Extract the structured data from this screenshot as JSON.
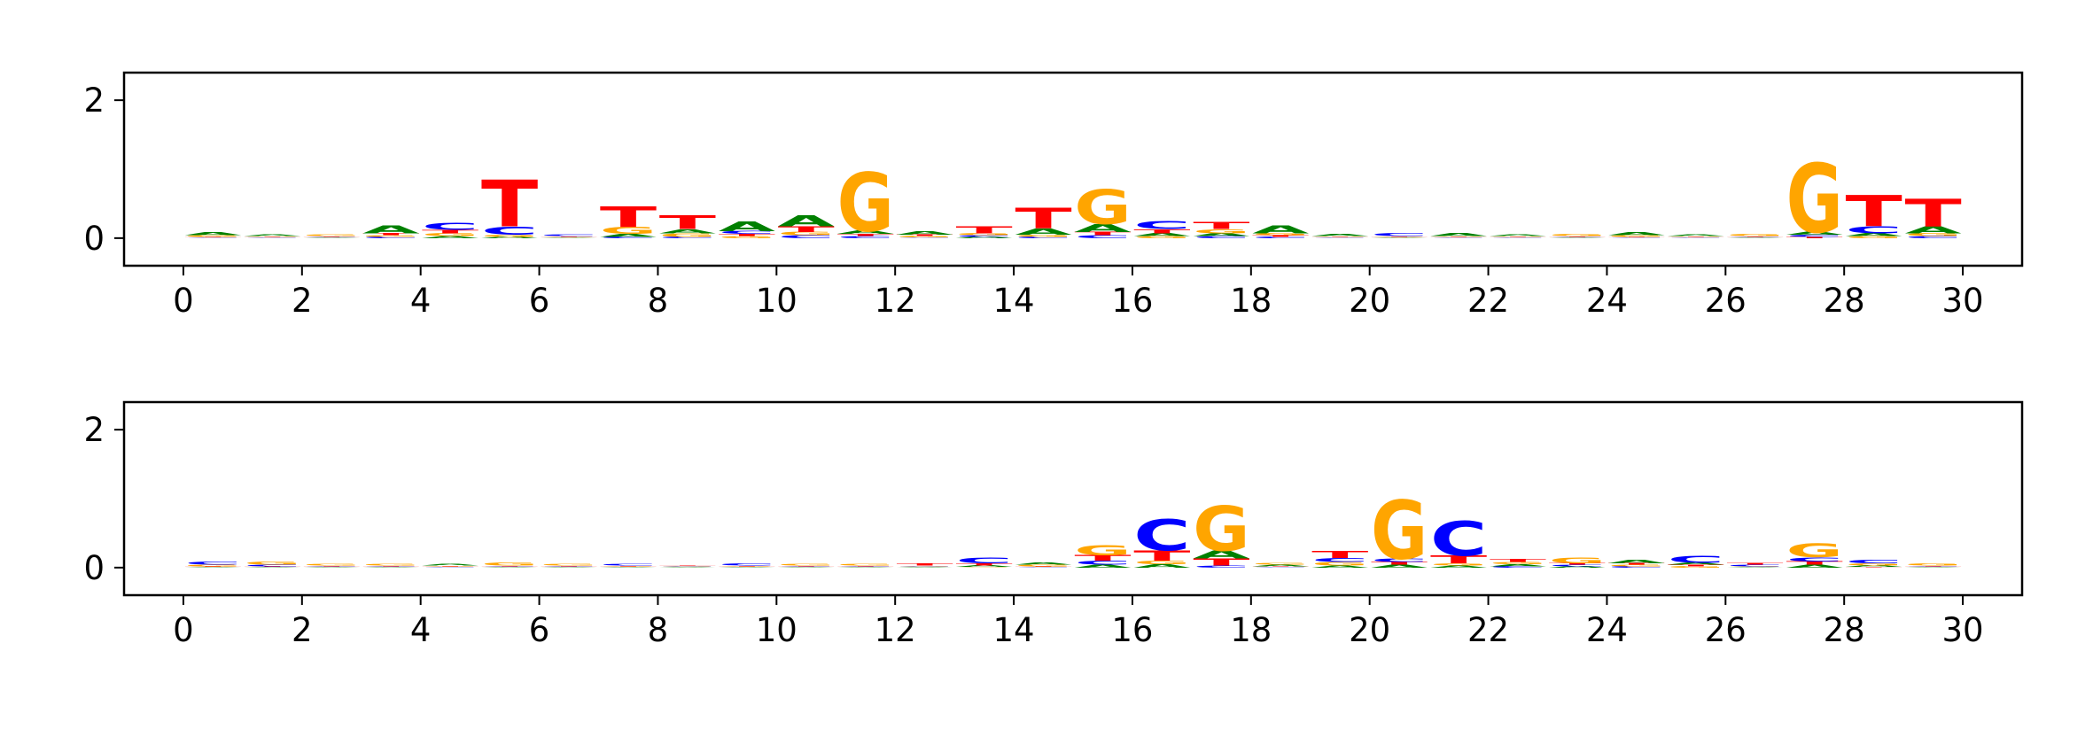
{
  "colors": {
    "A": "#008000",
    "C": "#0000ff",
    "G": "#ffa500",
    "T": "#ff0000",
    "axis": "#000000"
  },
  "chart_data": [
    {
      "type": "sequence-logo",
      "title": "",
      "xlabel": "",
      "ylabel": "",
      "xlim": [
        -1,
        31
      ],
      "ylim": [
        -0.4,
        2.4
      ],
      "xticks": [
        "0",
        "2",
        "4",
        "6",
        "8",
        "10",
        "12",
        "14",
        "16",
        "18",
        "20",
        "22",
        "24",
        "26",
        "28",
        "30"
      ],
      "yticks": [
        "0",
        "2"
      ],
      "positions": [
        {
          "x": 0,
          "letters": {
            "A": 0.04,
            "C": 0.01,
            "G": 0.02,
            "T": 0.01
          }
        },
        {
          "x": 1,
          "letters": {
            "A": 0.02,
            "C": 0.01,
            "G": 0.01,
            "T": 0.01
          }
        },
        {
          "x": 2,
          "letters": {
            "A": 0.01,
            "C": 0.01,
            "G": 0.02,
            "T": 0.01
          }
        },
        {
          "x": 3,
          "letters": {
            "A": 0.12,
            "C": 0.02,
            "G": 0.02,
            "T": 0.03
          }
        },
        {
          "x": 4,
          "letters": {
            "A": 0.03,
            "C": 0.1,
            "G": 0.04,
            "T": 0.05
          }
        },
        {
          "x": 5,
          "letters": {
            "A": 0.02,
            "C": 0.12,
            "G": 0.03,
            "T": 0.68
          }
        },
        {
          "x": 6,
          "letters": {
            "A": 0.01,
            "C": 0.02,
            "G": 0.01,
            "T": 0.01
          }
        },
        {
          "x": 7,
          "letters": {
            "A": 0.04,
            "C": 0.02,
            "G": 0.1,
            "T": 0.3
          }
        },
        {
          "x": 8,
          "letters": {
            "A": 0.06,
            "C": 0.02,
            "G": 0.05,
            "T": 0.2
          }
        },
        {
          "x": 9,
          "letters": {
            "A": 0.14,
            "C": 0.04,
            "G": 0.03,
            "T": 0.03
          }
        },
        {
          "x": 10,
          "letters": {
            "A": 0.16,
            "C": 0.04,
            "G": 0.05,
            "T": 0.08
          }
        },
        {
          "x": 11,
          "letters": {
            "A": 0.05,
            "C": 0.03,
            "G": 0.85,
            "T": 0.03
          }
        },
        {
          "x": 12,
          "letters": {
            "A": 0.05,
            "C": 0.01,
            "G": 0.02,
            "T": 0.02
          }
        },
        {
          "x": 13,
          "letters": {
            "A": 0.02,
            "C": 0.02,
            "G": 0.03,
            "T": 0.1
          }
        },
        {
          "x": 14,
          "letters": {
            "A": 0.09,
            "C": 0.02,
            "G": 0.03,
            "T": 0.3
          }
        },
        {
          "x": 15,
          "letters": {
            "A": 0.12,
            "C": 0.04,
            "G": 0.5,
            "T": 0.05
          }
        },
        {
          "x": 16,
          "letters": {
            "A": 0.04,
            "C": 0.12,
            "G": 0.03,
            "T": 0.06
          }
        },
        {
          "x": 17,
          "letters": {
            "A": 0.04,
            "C": 0.03,
            "G": 0.06,
            "T": 0.1
          }
        },
        {
          "x": 18,
          "letters": {
            "A": 0.12,
            "C": 0.02,
            "G": 0.03,
            "T": 0.02
          }
        },
        {
          "x": 19,
          "letters": {
            "A": 0.03,
            "C": 0.01,
            "G": 0.01,
            "T": 0.01
          }
        },
        {
          "x": 20,
          "letters": {
            "A": 0.01,
            "C": 0.04,
            "G": 0.01,
            "T": 0.01
          }
        },
        {
          "x": 21,
          "letters": {
            "A": 0.04,
            "C": 0.01,
            "G": 0.01,
            "T": 0.01
          }
        },
        {
          "x": 22,
          "letters": {
            "A": 0.02,
            "C": 0.01,
            "G": 0.01,
            "T": 0.01
          }
        },
        {
          "x": 23,
          "letters": {
            "A": 0.01,
            "C": 0.01,
            "G": 0.03,
            "T": 0.01
          }
        },
        {
          "x": 24,
          "letters": {
            "A": 0.04,
            "C": 0.01,
            "G": 0.02,
            "T": 0.01
          }
        },
        {
          "x": 25,
          "letters": {
            "A": 0.02,
            "C": 0.01,
            "G": 0.01,
            "T": 0.01
          }
        },
        {
          "x": 26,
          "letters": {
            "A": 0.01,
            "C": 0.01,
            "G": 0.03,
            "T": 0.01
          }
        },
        {
          "x": 27,
          "letters": {
            "A": 0.04,
            "C": 0.03,
            "G": 1.0,
            "T": 0.02
          }
        },
        {
          "x": 28,
          "letters": {
            "A": 0.04,
            "C": 0.1,
            "G": 0.03,
            "T": 0.45
          }
        },
        {
          "x": 29,
          "letters": {
            "A": 0.1,
            "C": 0.03,
            "G": 0.04,
            "T": 0.4
          }
        }
      ]
    },
    {
      "type": "sequence-logo",
      "title": "",
      "xlabel": "",
      "ylabel": "",
      "xlim": [
        -1,
        31
      ],
      "ylim": [
        -0.4,
        2.4
      ],
      "xticks": [
        "0",
        "2",
        "4",
        "6",
        "8",
        "10",
        "12",
        "14",
        "16",
        "18",
        "20",
        "22",
        "24",
        "26",
        "28",
        "30"
      ],
      "yticks": [
        "0",
        "2"
      ],
      "positions": [
        {
          "x": 0,
          "letters": {
            "A": 0.01,
            "C": 0.04,
            "G": 0.02,
            "T": 0.01
          }
        },
        {
          "x": 1,
          "letters": {
            "A": 0.01,
            "C": 0.02,
            "G": 0.04,
            "T": 0.01
          }
        },
        {
          "x": 2,
          "letters": {
            "A": 0.01,
            "C": 0.01,
            "G": 0.02,
            "T": 0.01
          }
        },
        {
          "x": 3,
          "letters": {
            "A": 0.01,
            "C": 0.01,
            "G": 0.02,
            "T": 0.01
          }
        },
        {
          "x": 4,
          "letters": {
            "A": 0.02,
            "C": 0.01,
            "G": 0.01,
            "T": 0.01
          }
        },
        {
          "x": 5,
          "letters": {
            "A": 0.01,
            "C": 0.01,
            "G": 0.04,
            "T": 0.01
          }
        },
        {
          "x": 6,
          "letters": {
            "A": 0.01,
            "C": 0.01,
            "G": 0.02,
            "T": 0.01
          }
        },
        {
          "x": 7,
          "letters": {
            "A": 0.01,
            "C": 0.02,
            "G": 0.01,
            "T": 0.01
          }
        },
        {
          "x": 8,
          "letters": {
            "A": 0.01,
            "C": 0.01,
            "G": 0.01,
            "T": 0.01
          }
        },
        {
          "x": 9,
          "letters": {
            "A": 0.01,
            "C": 0.03,
            "G": 0.01,
            "T": 0.01
          }
        },
        {
          "x": 10,
          "letters": {
            "A": 0.01,
            "C": 0.01,
            "G": 0.02,
            "T": 0.01
          }
        },
        {
          "x": 11,
          "letters": {
            "A": 0.01,
            "C": 0.01,
            "G": 0.02,
            "T": 0.01
          }
        },
        {
          "x": 12,
          "letters": {
            "A": 0.01,
            "C": 0.01,
            "G": 0.01,
            "T": 0.03
          }
        },
        {
          "x": 13,
          "letters": {
            "A": 0.02,
            "C": 0.08,
            "G": 0.01,
            "T": 0.03
          }
        },
        {
          "x": 14,
          "letters": {
            "A": 0.03,
            "C": 0.01,
            "G": 0.02,
            "T": 0.01
          }
        },
        {
          "x": 15,
          "letters": {
            "A": 0.04,
            "C": 0.06,
            "G": 0.15,
            "T": 0.08
          }
        },
        {
          "x": 16,
          "letters": {
            "A": 0.05,
            "C": 0.45,
            "G": 0.05,
            "T": 0.15
          }
        },
        {
          "x": 17,
          "letters": {
            "A": 0.12,
            "C": 0.03,
            "G": 0.65,
            "T": 0.1
          }
        },
        {
          "x": 18,
          "letters": {
            "A": 0.02,
            "C": 0.01,
            "G": 0.02,
            "T": 0.01
          }
        },
        {
          "x": 19,
          "letters": {
            "A": 0.03,
            "C": 0.06,
            "G": 0.05,
            "T": 0.1
          }
        },
        {
          "x": 20,
          "letters": {
            "A": 0.04,
            "C": 0.05,
            "G": 0.85,
            "T": 0.04
          }
        },
        {
          "x": 21,
          "letters": {
            "A": 0.03,
            "C": 0.5,
            "G": 0.03,
            "T": 0.12
          }
        },
        {
          "x": 22,
          "letters": {
            "A": 0.03,
            "C": 0.02,
            "G": 0.03,
            "T": 0.04
          }
        },
        {
          "x": 23,
          "letters": {
            "A": 0.02,
            "C": 0.02,
            "G": 0.08,
            "T": 0.02
          }
        },
        {
          "x": 24,
          "letters": {
            "A": 0.05,
            "C": 0.02,
            "G": 0.02,
            "T": 0.02
          }
        },
        {
          "x": 25,
          "letters": {
            "A": 0.03,
            "C": 0.1,
            "G": 0.02,
            "T": 0.02
          }
        },
        {
          "x": 26,
          "letters": {
            "A": 0.01,
            "C": 0.02,
            "G": 0.01,
            "T": 0.02
          }
        },
        {
          "x": 27,
          "letters": {
            "A": 0.04,
            "C": 0.06,
            "G": 0.2,
            "T": 0.05
          }
        },
        {
          "x": 28,
          "letters": {
            "A": 0.02,
            "C": 0.05,
            "G": 0.03,
            "T": 0.01
          }
        },
        {
          "x": 29,
          "letters": {
            "A": 0.01,
            "C": 0.01,
            "G": 0.03,
            "T": 0.01
          }
        }
      ]
    }
  ]
}
